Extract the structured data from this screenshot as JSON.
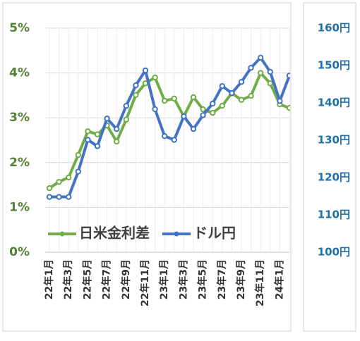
{
  "chart_data": {
    "type": "line",
    "categories": [
      "22年1月",
      null,
      "22年3月",
      null,
      "22年5月",
      null,
      "22年7月",
      null,
      "22年9月",
      null,
      "22年11月",
      null,
      "23年1月",
      null,
      "23年3月",
      null,
      "23年5月",
      null,
      "23年7月",
      null,
      "23年9月",
      null,
      "23年11月",
      null,
      "24年1月",
      null
    ],
    "series": [
      {
        "name": "日米金利差",
        "color": "#70ad47",
        "values": [
          1.43,
          1.57,
          1.67,
          2.17,
          2.7,
          2.63,
          2.83,
          2.47,
          2.96,
          3.51,
          3.77,
          3.9,
          3.38,
          3.43,
          3.03,
          3.46,
          3.19,
          3.11,
          3.27,
          3.55,
          3.4,
          3.49,
          4.0,
          3.77,
          3.3,
          3.22
        ]
      },
      {
        "name": "ドル円",
        "color": "#4472c4",
        "axis": "y2",
        "values": [
          114.8,
          114.8,
          114.8,
          121.6,
          130.1,
          128.4,
          135.8,
          133.0,
          139.2,
          144.7,
          148.7,
          138.3,
          131.1,
          130.1,
          136.4,
          133.0,
          136.7,
          139.8,
          144.5,
          142.6,
          145.6,
          149.4,
          152.1,
          148.3,
          140.5,
          147.3
        ]
      }
    ],
    "ylim": [
      0,
      5
    ],
    "yticks": [
      {
        "value": 0,
        "label": "0%"
      },
      {
        "value": 1,
        "label": "1%"
      },
      {
        "value": 2,
        "label": "2%"
      },
      {
        "value": 3,
        "label": "3%"
      },
      {
        "value": 4,
        "label": "4%"
      },
      {
        "value": 5,
        "label": "5%"
      }
    ],
    "y2lim": [
      100,
      160
    ],
    "y2ticks": [
      {
        "value": 100,
        "label": "100円"
      },
      {
        "value": 110,
        "label": "110円"
      },
      {
        "value": 120,
        "label": "120円"
      },
      {
        "value": 130,
        "label": "130円"
      },
      {
        "value": 140,
        "label": "140円"
      },
      {
        "value": 150,
        "label": "150円"
      },
      {
        "value": 160,
        "label": "160円"
      }
    ],
    "grid": true,
    "legend": "bottom"
  }
}
